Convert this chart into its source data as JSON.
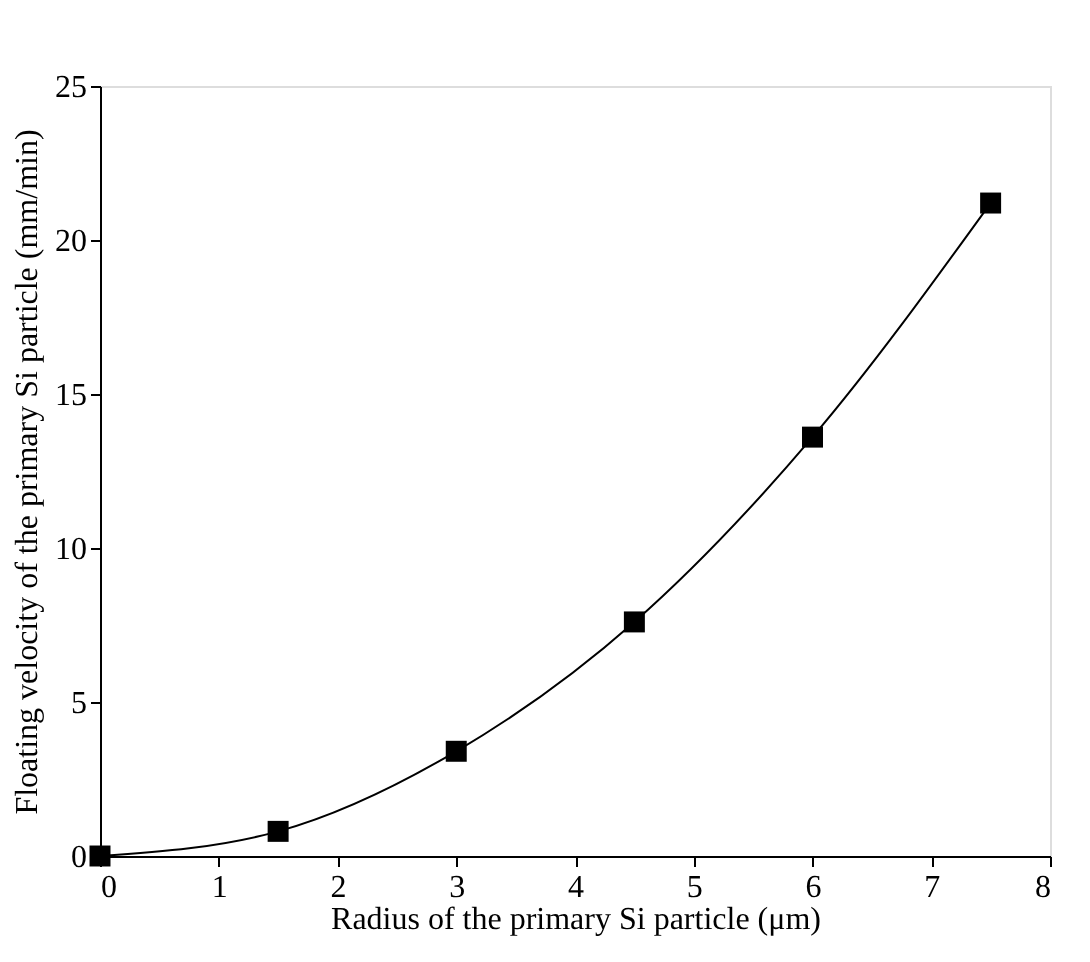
{
  "chart_data": {
    "type": "line",
    "xlabel": "Radius of the primary Si particle (μm)",
    "ylabel": "Floating velocity of the primary Si particle (mm/min)",
    "x": [
      0,
      1.5,
      3,
      4.5,
      6,
      7.5
    ],
    "series": [
      {
        "color": "#000000",
        "values": [
          0,
          0.8,
          3.4,
          7.6,
          13.6,
          21.2
        ]
      }
    ],
    "xlim": [
      0,
      8
    ],
    "xticks": [
      0,
      1,
      2,
      3,
      4,
      5,
      6,
      7,
      8
    ],
    "ylim": [
      0,
      25
    ],
    "yticks": [
      0,
      5,
      10,
      15,
      20,
      25
    ],
    "marker": "square",
    "line_style": "solid",
    "grid": false,
    "legend": false
  }
}
